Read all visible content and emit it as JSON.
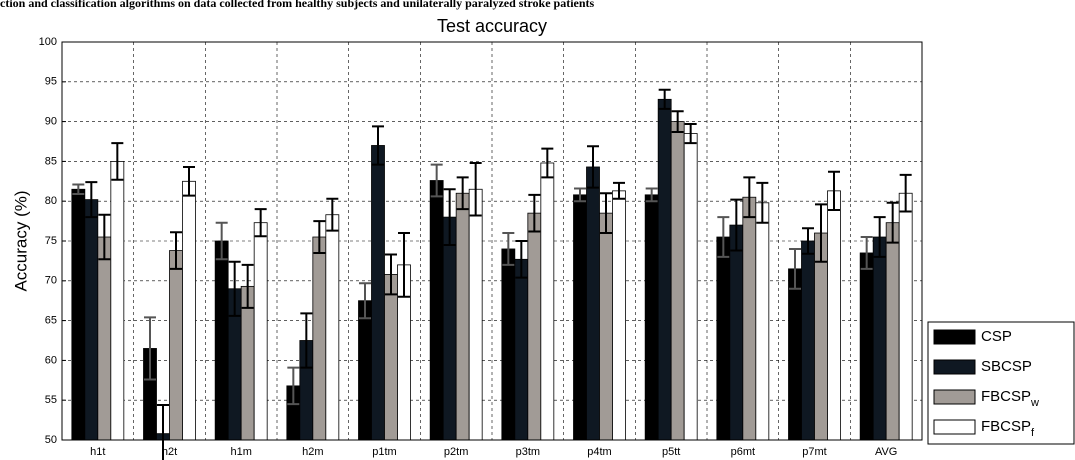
{
  "chart_data": {
    "type": "bar",
    "caption": "ction and classification algorithms on data collected from healthy subjects and unilaterally paralyzed stroke patients",
    "title": "Test accuracy",
    "y_label": "Accuracy (%)",
    "categories": [
      "h1t",
      "h2t",
      "h1m",
      "h2m",
      "p1tm",
      "p2tm",
      "p3tm",
      "p4tm",
      "p5tt",
      "p6mt",
      "p7mt",
      "AVG"
    ],
    "series": [
      {
        "name": "CSP",
        "color": "#000000",
        "error_color": "#555555",
        "values": [
          81.5,
          61.5,
          75,
          56.8,
          67.5,
          82.6,
          74,
          80.8,
          80.8,
          75.5,
          71.5,
          73.5
        ],
        "errors": [
          0.6,
          3.9,
          2.3,
          2.3,
          2.2,
          2,
          2,
          0.8,
          0.8,
          2.5,
          2.5,
          2
        ]
      },
      {
        "name": "SBCSP",
        "color": "#0f1822",
        "error_color": "#000000",
        "values": [
          80.2,
          50.8,
          69,
          62.5,
          87,
          78,
          72.7,
          84.3,
          92.8,
          77,
          75,
          75.5
        ],
        "errors": [
          2.2,
          3.6,
          3.4,
          3.4,
          2.4,
          3.5,
          2.3,
          2.6,
          1.2,
          3.2,
          1.6,
          2.5
        ]
      },
      {
        "name": "FBCSP",
        "subscript": "w",
        "color": "#a19b96",
        "error_color": "#000000",
        "values": [
          75.5,
          73.8,
          69.3,
          75.5,
          70.8,
          81,
          78.5,
          78.5,
          90,
          80.5,
          76,
          77.3
        ],
        "errors": [
          2.8,
          2.3,
          2.7,
          2,
          2.5,
          2,
          2.3,
          2.5,
          1.3,
          2.5,
          3.6,
          2.5
        ]
      },
      {
        "name": "FBCSP",
        "subscript": "f",
        "color": "#ffffff",
        "error_color": "#000000",
        "values": [
          85,
          82.5,
          77.3,
          78.3,
          72,
          81.5,
          84.8,
          81.3,
          88.5,
          79.8,
          81.3,
          81
        ],
        "errors": [
          2.3,
          1.8,
          1.7,
          2,
          4,
          3.3,
          1.8,
          1,
          1.2,
          2.5,
          2.4,
          2.3
        ]
      }
    ],
    "ylim": [
      50,
      100
    ],
    "yticks": [
      50,
      55,
      60,
      65,
      70,
      75,
      80,
      85,
      90,
      95,
      100
    ],
    "grid": true,
    "legend": "lower right"
  }
}
